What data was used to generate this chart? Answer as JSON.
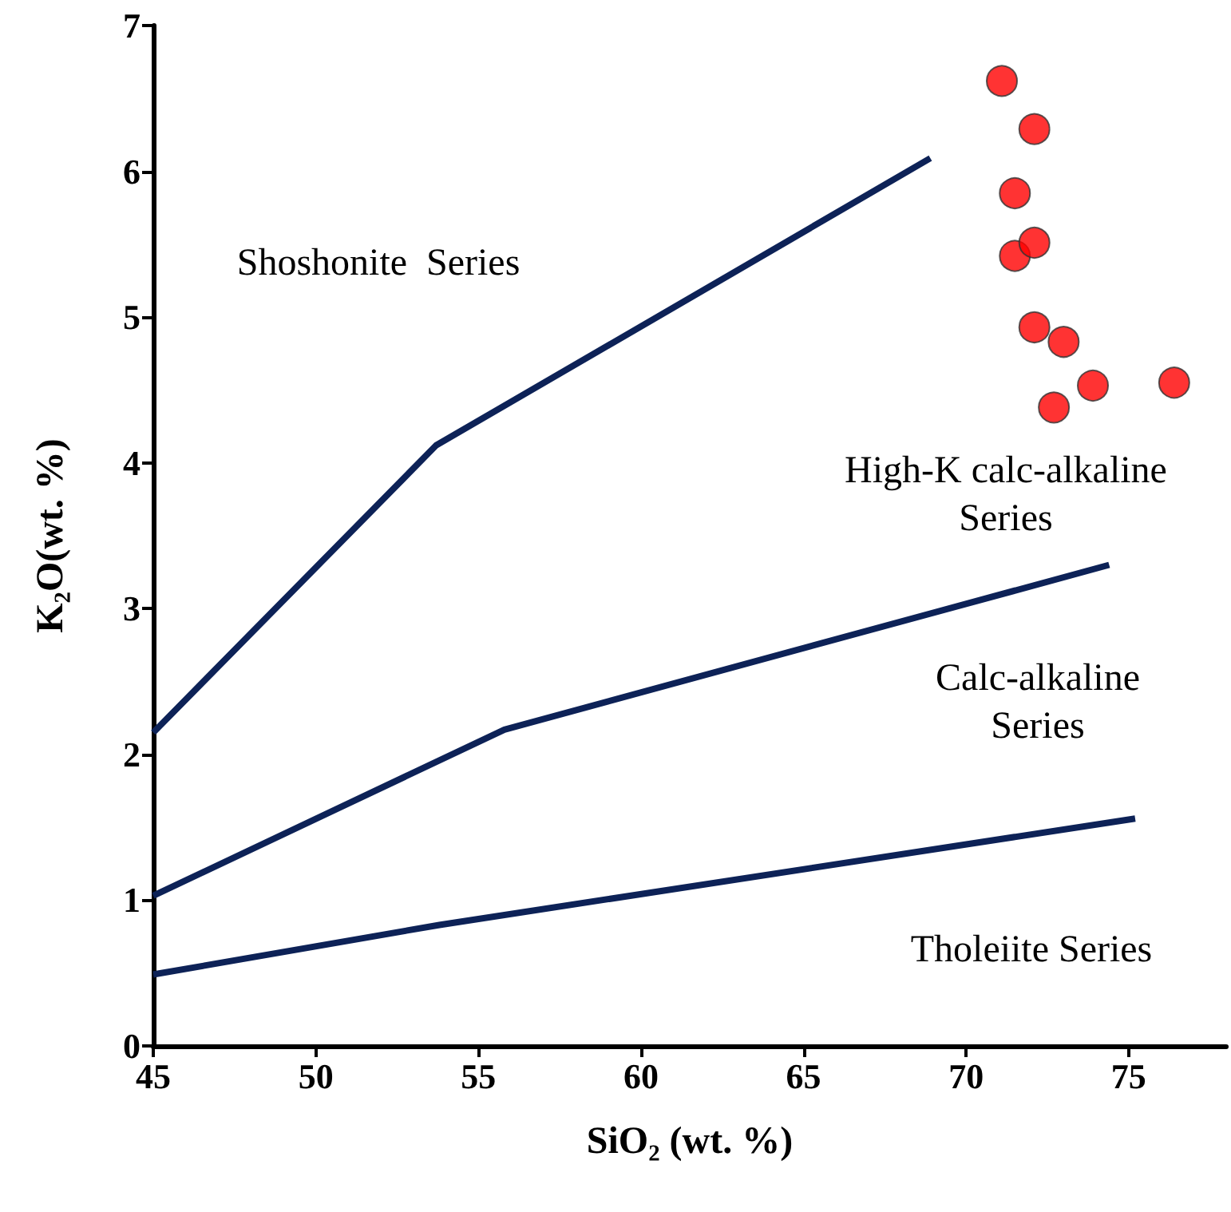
{
  "chart_data": {
    "type": "scatter",
    "xlabel": "SiO₂ (wt. %)",
    "ylabel": "K₂O(wt. %)",
    "xlim": [
      45,
      78
    ],
    "xticks": [
      45,
      50,
      55,
      60,
      65,
      70,
      75
    ],
    "ylim": [
      0,
      7
    ],
    "yticks": [
      0,
      1,
      2,
      3,
      4,
      5,
      6,
      7
    ],
    "grid": false,
    "series": [
      {
        "type": "line",
        "color": "#0d2257",
        "marker": "none",
        "line_style": "solid",
        "x": [
          45,
          53.7,
          68.9
        ],
        "values": [
          2.15,
          4.12,
          6.09
        ]
      },
      {
        "type": "line",
        "color": "#0d2257",
        "marker": "none",
        "line_style": "solid",
        "x": [
          45,
          55.8,
          74.4
        ],
        "values": [
          1.03,
          2.17,
          3.3
        ]
      },
      {
        "type": "line",
        "color": "#0d2257",
        "marker": "none",
        "line_style": "solid",
        "x": [
          45,
          53.8,
          75.2
        ],
        "values": [
          0.49,
          0.83,
          1.56
        ]
      },
      {
        "color": "#ff0000",
        "marker": "circle",
        "x": [
          71.1,
          72.1,
          71.5,
          71.5,
          72.1,
          72.1,
          73.0,
          73.9,
          72.7,
          76.4
        ],
        "values": [
          6.62,
          6.29,
          5.85,
          5.42,
          5.51,
          4.93,
          4.83,
          4.53,
          4.38,
          4.55
        ]
      }
    ],
    "annotations": [
      "Shoshonite  Series",
      "High-K calc-alkaline\nSeries",
      "Calc-alkaline\nSeries",
      "Tholeiite Series"
    ]
  }
}
